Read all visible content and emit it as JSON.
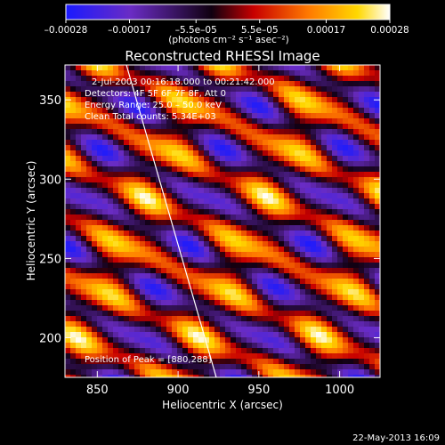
{
  "chart_data": {
    "type": "heatmap",
    "title": "Reconstructed RHESSI Image",
    "xlabel": "Heliocentric X (arcsec)",
    "ylabel": "Heliocentric Y (arcsec)",
    "xlim": [
      830,
      1025
    ],
    "ylim": [
      175,
      372
    ],
    "xticks": [
      850,
      900,
      950,
      1000
    ],
    "xtick_labels": [
      "850",
      "900",
      "950",
      "1000"
    ],
    "yticks": [
      200,
      250,
      300,
      350
    ],
    "ytick_labels": [
      "200",
      "250",
      "300",
      "350"
    ],
    "colorbar": {
      "min": -0.00028,
      "max": 0.00028,
      "ticks": [
        -0.00028,
        -0.00017,
        -5.5e-05,
        5.5e-05,
        0.00017,
        0.00028
      ],
      "tick_labels": [
        "–0.00028",
        "–0.00017",
        "–5.5e–05",
        "5.5e–05",
        "0.00017",
        "0.00028"
      ],
      "unit_label": "(photons cm⁻² s⁻¹ asec⁻²)",
      "colormap": "blue-purple-red-yellow-white"
    },
    "annotations": [
      "2-Jul-2003 00:16:18.000 to 00:21:42.000",
      "Detectors: 4F 5F 6F 7F 8F, Att 0",
      "Energy Range: 25.0 – 50.0 keV",
      "Clean    Total counts: 5.34E+03"
    ],
    "peak_label": "Position of Peak = [880,288]",
    "peak_position": [
      880,
      288
    ],
    "grid": false
  },
  "timestamp": "22-May-2013 16:09",
  "colors": {
    "background": "#000000",
    "text": "#ffffff",
    "colormap_stops": [
      "#1a1aff",
      "#6a2cc4",
      "#100010",
      "#c80000",
      "#ff7a00",
      "#ffd800",
      "#ffffff"
    ]
  }
}
